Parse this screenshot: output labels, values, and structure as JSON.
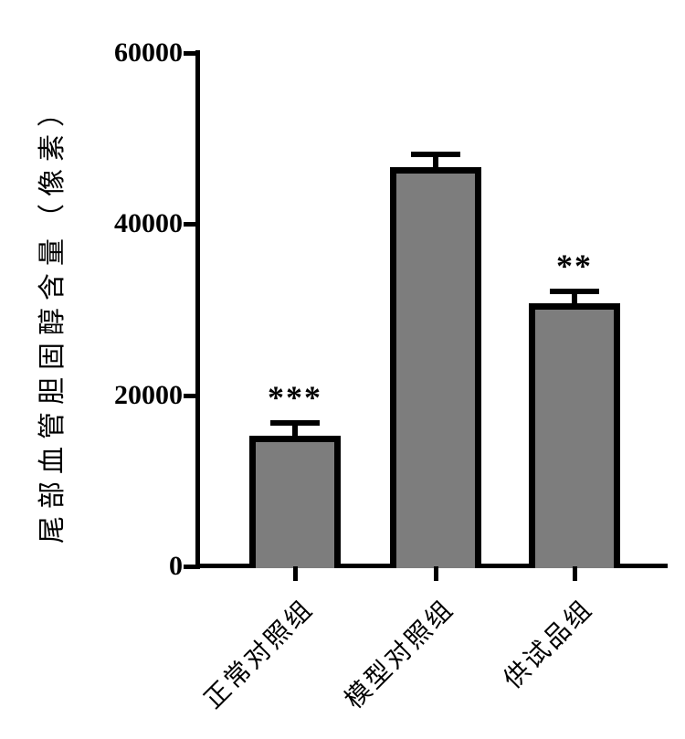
{
  "chart_data": {
    "type": "bar",
    "title": "",
    "ylabel": "尾部血管胆固醇含量（像素）",
    "xlabel": "",
    "categories": [
      "正常对照组",
      "模型对照组",
      "供试品组"
    ],
    "values": [
      15300,
      46700,
      30700
    ],
    "errors": [
      1500,
      1400,
      1400
    ],
    "error_direction": "upper-only",
    "significance": [
      "***",
      "",
      "**"
    ],
    "yticks": [
      0,
      20000,
      40000,
      60000
    ],
    "ylim": [
      0,
      60000
    ],
    "legend": "none",
    "grid": false,
    "colors": {
      "bar_fill": "#7d7d7d",
      "bar_edge": "#000000",
      "axis": "#000000",
      "text": "#000000",
      "background": "#ffffff"
    }
  }
}
